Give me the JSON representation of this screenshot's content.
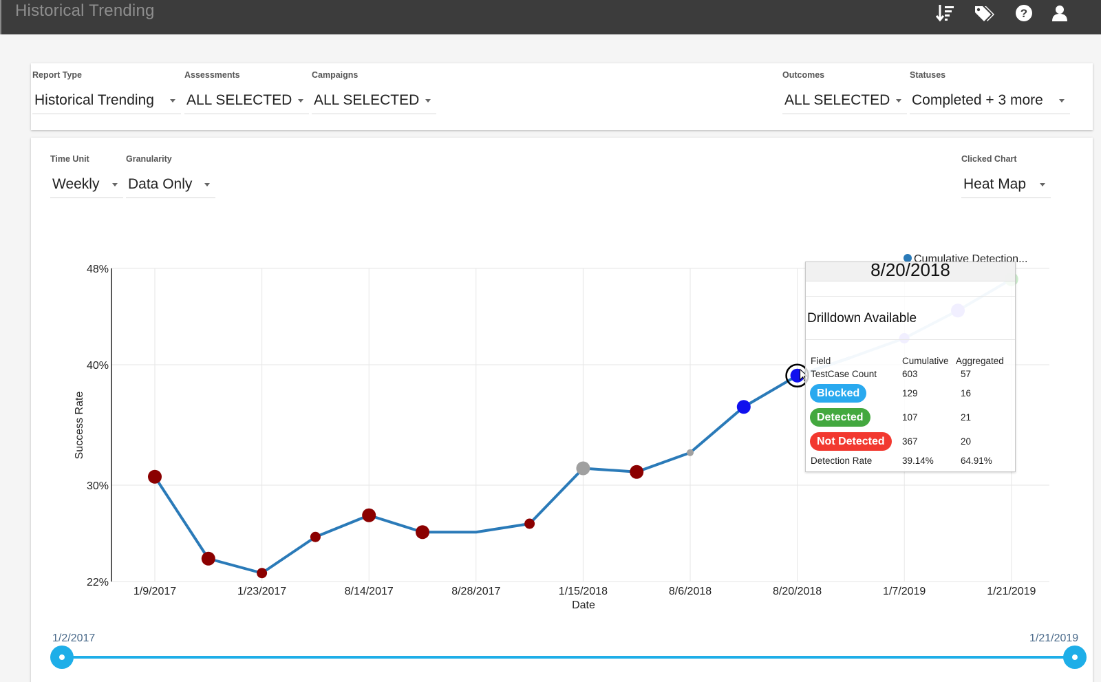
{
  "app": {
    "title": "Historical Trending",
    "icons": [
      "sort-icon",
      "tags-icon",
      "help-icon",
      "user-icon"
    ]
  },
  "filters": {
    "report_type": {
      "label": "Report Type",
      "value": "Historical Trending"
    },
    "assessments": {
      "label": "Assessments",
      "value": "ALL SELECTED"
    },
    "campaigns": {
      "label": "Campaigns",
      "value": "ALL SELECTED"
    },
    "outcomes": {
      "label": "Outcomes",
      "value": "ALL SELECTED"
    },
    "statuses": {
      "label": "Statuses",
      "value": "Completed + 3 more"
    }
  },
  "chart_controls": {
    "time_unit": {
      "label": "Time Unit",
      "value": "Weekly"
    },
    "granularity": {
      "label": "Granularity",
      "value": "Data Only"
    },
    "clicked_chart": {
      "label": "Clicked Chart",
      "value": "Heat Map"
    }
  },
  "chart_data": {
    "type": "line",
    "title": "",
    "xlabel": "Date",
    "ylabel": "Success Rate",
    "legend": "Cumulative Detection...",
    "legend_position": "top-right",
    "y_ticks": [
      "48%",
      "40%",
      "30%",
      "22%"
    ],
    "y_tick_values": [
      48,
      40,
      30,
      22
    ],
    "ylim": [
      22,
      48
    ],
    "x_tick_labels": [
      "1/9/2017",
      "1/23/2017",
      "8/14/2017",
      "8/28/2017",
      "1/15/2018",
      "8/6/2018",
      "8/20/2018",
      "1/7/2019",
      "1/21/2019"
    ],
    "x_tick_index": [
      0,
      2,
      4,
      6,
      8,
      10,
      12,
      14,
      16
    ],
    "line_color": "#2a7ab8",
    "grid": true,
    "series": [
      {
        "name": "Cumulative Detection...",
        "values": [
          30.7,
          23.9,
          22.7,
          25.7,
          27.5,
          26.1,
          26.1,
          26.8,
          31.4,
          31.1,
          32.7,
          36.5,
          39.1,
          40.6,
          42.2,
          44.5,
          47.1
        ],
        "point_colors": [
          "#8b0000",
          "#8b0000",
          "#8b0000",
          "#8b0000",
          "#8b0000",
          "#8b0000",
          "",
          "#8b0000",
          "#a0a0a0",
          "#8b0000",
          "#a0a0a0",
          "#1010ee",
          "#1010ee",
          "",
          "#bdb8ff",
          "#bdb8ff",
          "#cfeecf"
        ],
        "point_sizes": [
          "large",
          "large",
          "medium",
          "medium",
          "large",
          "large",
          "none",
          "medium",
          "large",
          "large",
          "small",
          "large",
          "large",
          "none",
          "medium",
          "large",
          "large"
        ]
      }
    ]
  },
  "tooltip": {
    "date": "8/20/2018",
    "subtitle": "Drilldown Available",
    "columns": [
      "Field",
      "Cumulative",
      "Aggregated"
    ],
    "rows": [
      {
        "field": "TestCase Count",
        "cumulative": "603",
        "aggregated": "57",
        "badge": ""
      },
      {
        "field": "Blocked",
        "cumulative": "129",
        "aggregated": "16",
        "badge": "#29a9ef"
      },
      {
        "field": "Detected",
        "cumulative": "107",
        "aggregated": "21",
        "badge": "#43a83f"
      },
      {
        "field": "Not Detected",
        "cumulative": "367",
        "aggregated": "20",
        "badge": "#f2382f"
      },
      {
        "field": "Detection Rate",
        "cumulative": "39.14%",
        "aggregated": "64.91%",
        "badge": ""
      }
    ]
  },
  "range_slider": {
    "start": "1/2/2017",
    "end": "1/21/2019",
    "color": "#1eaee8"
  }
}
